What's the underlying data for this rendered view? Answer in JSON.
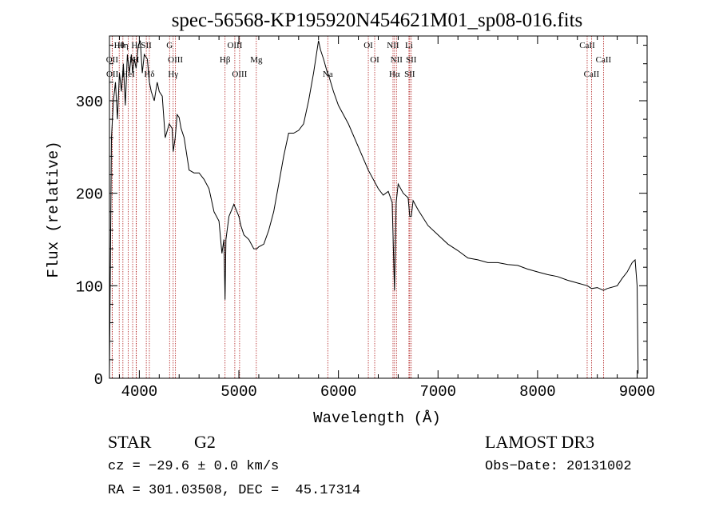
{
  "chart_data": {
    "type": "line",
    "title": "spec-56568-KP195920N454621M01_sp08-016.fits",
    "xlabel": "Wavelength (Å)",
    "ylabel": "Flux (relative)",
    "xlim": [
      3700,
      9100
    ],
    "ylim": [
      0,
      370
    ],
    "xticks": [
      4000,
      5000,
      6000,
      7000,
      8000,
      9000
    ],
    "yticks": [
      0,
      100,
      200,
      300
    ],
    "series": [
      {
        "name": "spectrum",
        "x": [
          3700,
          3720,
          3740,
          3760,
          3780,
          3800,
          3820,
          3840,
          3860,
          3880,
          3900,
          3920,
          3933,
          3950,
          3968,
          3990,
          4010,
          4030,
          4050,
          4080,
          4101,
          4120,
          4150,
          4180,
          4200,
          4230,
          4260,
          4300,
          4330,
          4340,
          4360,
          4380,
          4400,
          4420,
          4450,
          4500,
          4550,
          4600,
          4650,
          4700,
          4750,
          4800,
          4830,
          4850,
          4861,
          4870,
          4900,
          4950,
          5000,
          5020,
          5050,
          5100,
          5150,
          5180,
          5200,
          5250,
          5300,
          5350,
          5400,
          5450,
          5500,
          5550,
          5600,
          5650,
          5700,
          5750,
          5800,
          5820,
          5850,
          5890,
          5900,
          5950,
          6000,
          6100,
          6200,
          6300,
          6400,
          6450,
          6500,
          6540,
          6563,
          6580,
          6600,
          6650,
          6700,
          6716,
          6731,
          6750,
          6800,
          6900,
          7000,
          7100,
          7200,
          7300,
          7400,
          7500,
          7600,
          7700,
          7800,
          7900,
          8000,
          8100,
          8200,
          8300,
          8400,
          8500,
          8542,
          8600,
          8662,
          8700,
          8800,
          8850,
          8900,
          8950,
          8980,
          9000,
          9010
        ],
        "y": [
          5,
          260,
          300,
          320,
          280,
          330,
          310,
          340,
          295,
          350,
          330,
          350,
          330,
          345,
          335,
          360,
          365,
          330,
          350,
          345,
          320,
          310,
          300,
          320,
          310,
          305,
          260,
          275,
          270,
          245,
          260,
          285,
          282,
          270,
          260,
          225,
          222,
          222,
          215,
          205,
          180,
          170,
          135,
          150,
          85,
          150,
          175,
          188,
          175,
          165,
          155,
          150,
          140,
          140,
          142,
          145,
          160,
          180,
          210,
          240,
          265,
          265,
          268,
          275,
          300,
          330,
          365,
          355,
          345,
          330,
          328,
          310,
          295,
          275,
          250,
          225,
          205,
          198,
          202,
          190,
          95,
          190,
          210,
          200,
          195,
          175,
          175,
          192,
          182,
          165,
          155,
          145,
          138,
          130,
          128,
          125,
          125,
          123,
          122,
          118,
          115,
          112,
          110,
          106,
          103,
          100,
          97,
          98,
          95,
          97,
          100,
          108,
          115,
          125,
          128,
          100,
          5
        ]
      }
    ],
    "line_annotations": [
      {
        "label": "Hθ",
        "x": 3798
      },
      {
        "label": "OII",
        "x": 3727
      },
      {
        "label": "OII",
        "x": 3729
      },
      {
        "label": "Hη",
        "x": 3835
      },
      {
        "label": "K",
        "x": 3933
      },
      {
        "label": "HeI",
        "x": 3889
      },
      {
        "label": "Hε",
        "x": 3970
      },
      {
        "label": "H",
        "x": 3968
      },
      {
        "label": "Hδ",
        "x": 4101
      },
      {
        "label": "SII",
        "x": 4070
      },
      {
        "label": "OIII",
        "x": 4363
      },
      {
        "label": "Hγ",
        "x": 4340
      },
      {
        "label": "G",
        "x": 4304
      },
      {
        "label": "Hβ",
        "x": 4861
      },
      {
        "label": "OIII",
        "x": 5007
      },
      {
        "label": "OIII",
        "x": 4959
      },
      {
        "label": "Mg",
        "x": 5175
      },
      {
        "label": "Na",
        "x": 5893
      },
      {
        "label": "OI",
        "x": 6300
      },
      {
        "label": "OI",
        "x": 6364
      },
      {
        "label": "Hα",
        "x": 6563
      },
      {
        "label": "NII",
        "x": 6548
      },
      {
        "label": "NII",
        "x": 6583
      },
      {
        "label": "SII",
        "x": 6716
      },
      {
        "label": "Li",
        "x": 6708
      },
      {
        "label": "SII",
        "x": 6731
      },
      {
        "label": "CaII",
        "x": 8542
      },
      {
        "label": "CaII",
        "x": 8498
      },
      {
        "label": "CaII",
        "x": 8662
      }
    ],
    "line_color": "#000000",
    "marker_color": "#b22222"
  },
  "info": {
    "object_class": "STAR",
    "subclass": "G2",
    "survey": "LAMOST DR3",
    "redshift": "cz = −29.6 ± 0.0 km/s",
    "obs_date": "Obs−Date: 20131002",
    "coords": "RA = 301.03508, DEC =  45.17314"
  }
}
